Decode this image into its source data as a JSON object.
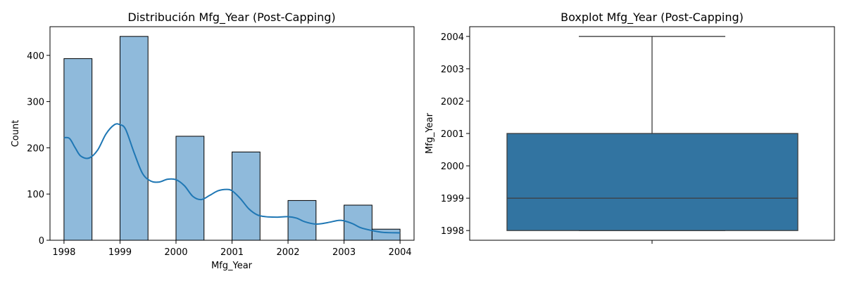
{
  "chart_data": [
    {
      "type": "histogram",
      "title": "Distribución Mfg_Year (Post-Capping)",
      "xlabel": "Mfg_Year",
      "ylabel": "Count",
      "xlim": [
        1997.75,
        2004.25
      ],
      "ylim": [
        0,
        462
      ],
      "xticks": [
        1998,
        1999,
        2000,
        2001,
        2002,
        2003,
        2004
      ],
      "yticks": [
        0,
        100,
        200,
        300,
        400
      ],
      "bar_color": "#8fbadb",
      "edge_color": "#000000",
      "bins": [
        {
          "start": 1998.0,
          "end": 1998.5,
          "count": 393
        },
        {
          "start": 1999.0,
          "end": 1999.5,
          "count": 441
        },
        {
          "start": 2000.0,
          "end": 2000.5,
          "count": 225
        },
        {
          "start": 2001.0,
          "end": 2001.5,
          "count": 191
        },
        {
          "start": 2002.0,
          "end": 2002.5,
          "count": 86
        },
        {
          "start": 2003.0,
          "end": 2003.5,
          "count": 76
        },
        {
          "start": 2003.5,
          "end": 2004.0,
          "count": 24
        }
      ],
      "kde": {
        "color": "#1f77b4",
        "points": [
          [
            1998.0,
            222
          ],
          [
            1998.1,
            220
          ],
          [
            1998.2,
            200
          ],
          [
            1998.3,
            182
          ],
          [
            1998.45,
            178
          ],
          [
            1998.6,
            195
          ],
          [
            1998.75,
            230
          ],
          [
            1998.9,
            250
          ],
          [
            1999.0,
            250
          ],
          [
            1999.1,
            240
          ],
          [
            1999.25,
            190
          ],
          [
            1999.4,
            145
          ],
          [
            1999.55,
            128
          ],
          [
            1999.7,
            126
          ],
          [
            1999.85,
            132
          ],
          [
            2000.0,
            131
          ],
          [
            2000.15,
            118
          ],
          [
            2000.3,
            95
          ],
          [
            2000.45,
            88
          ],
          [
            2000.6,
            97
          ],
          [
            2000.75,
            107
          ],
          [
            2000.9,
            110
          ],
          [
            2001.0,
            107
          ],
          [
            2001.15,
            90
          ],
          [
            2001.3,
            68
          ],
          [
            2001.45,
            55
          ],
          [
            2001.6,
            51
          ],
          [
            2001.8,
            50
          ],
          [
            2002.0,
            51
          ],
          [
            2002.15,
            48
          ],
          [
            2002.3,
            40
          ],
          [
            2002.5,
            35
          ],
          [
            2002.7,
            38
          ],
          [
            2002.9,
            43
          ],
          [
            2003.0,
            42
          ],
          [
            2003.15,
            36
          ],
          [
            2003.3,
            27
          ],
          [
            2003.5,
            21
          ],
          [
            2003.7,
            17
          ],
          [
            2004.0,
            16
          ]
        ]
      }
    },
    {
      "type": "boxplot",
      "title": "Boxplot Mfg_Year (Post-Capping)",
      "ylabel": "Mfg_Year",
      "ylim": [
        1997.7,
        2004.3
      ],
      "yticks": [
        1998,
        1999,
        2000,
        2001,
        2002,
        2003,
        2004
      ],
      "box_color": "#3274a1",
      "line_color": "#3d3d3d",
      "stats": {
        "whisker_low": 1998,
        "q1": 1998,
        "median": 1999,
        "q3": 2001,
        "whisker_high": 2004
      }
    }
  ]
}
